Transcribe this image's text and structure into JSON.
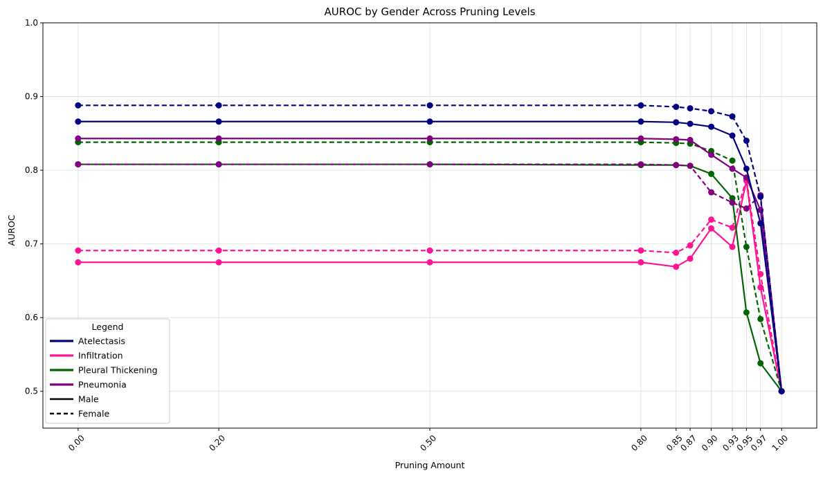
{
  "chart_data": {
    "type": "line",
    "title": "AUROC by Gender Across Pruning Levels",
    "xlabel": "Pruning Amount",
    "ylabel": "AUROC",
    "xlim": [
      -0.05,
      1.05
    ],
    "ylim": [
      0.45,
      1.0
    ],
    "x": [
      0.0,
      0.2,
      0.5,
      0.8,
      0.85,
      0.87,
      0.9,
      0.93,
      0.95,
      0.97,
      1.0
    ],
    "x_tick_labels": [
      "0.00",
      "0.20",
      "0.50",
      "0.80",
      "0.85",
      "0.87",
      "0.90",
      "0.93",
      "0.95",
      "0.97",
      "1.00"
    ],
    "y_ticks": [
      0.5,
      0.6,
      0.7,
      0.8,
      0.9,
      1.0
    ],
    "y_tick_labels": [
      "0.5",
      "0.6",
      "0.7",
      "0.8",
      "0.9",
      "1.0"
    ],
    "grid": true,
    "legend": {
      "title": "Legend",
      "position": "lower-left",
      "entries": [
        {
          "label": "Atelectasis",
          "color": "#000080",
          "style": "solid"
        },
        {
          "label": "Infiltration",
          "color": "#ff1493",
          "style": "solid"
        },
        {
          "label": "Pleural Thickening",
          "color": "#006400",
          "style": "solid"
        },
        {
          "label": "Pneumonia",
          "color": "#800080",
          "style": "solid"
        },
        {
          "label": "Male",
          "color": "#000000",
          "style": "solid"
        },
        {
          "label": "Female",
          "color": "#000000",
          "style": "dashed"
        }
      ]
    },
    "series": [
      {
        "disease": "Infiltration",
        "gender": "Female",
        "color": "#ff1493",
        "style": "dashed",
        "values": [
          0.691,
          0.691,
          0.691,
          0.691,
          0.688,
          0.698,
          0.733,
          0.722,
          0.788,
          0.659,
          0.5
        ]
      },
      {
        "disease": "Infiltration",
        "gender": "Male",
        "color": "#ff1493",
        "style": "solid",
        "values": [
          0.675,
          0.675,
          0.675,
          0.675,
          0.669,
          0.68,
          0.721,
          0.696,
          0.786,
          0.641,
          0.5
        ]
      },
      {
        "disease": "Pleural Thickening",
        "gender": "Female",
        "color": "#006400",
        "style": "dashed",
        "values": [
          0.838,
          0.838,
          0.838,
          0.838,
          0.837,
          0.836,
          0.826,
          0.813,
          0.696,
          0.598,
          0.5
        ]
      },
      {
        "disease": "Pleural Thickening",
        "gender": "Male",
        "color": "#006400",
        "style": "solid",
        "values": [
          0.808,
          0.808,
          0.808,
          0.807,
          0.807,
          0.806,
          0.795,
          0.762,
          0.607,
          0.538,
          0.5
        ]
      },
      {
        "disease": "Pneumonia",
        "gender": "Female",
        "color": "#800080",
        "style": "dashed",
        "values": [
          0.808,
          0.808,
          0.808,
          0.808,
          0.807,
          0.806,
          0.77,
          0.756,
          0.748,
          0.766,
          0.5
        ]
      },
      {
        "disease": "Pneumonia",
        "gender": "Male",
        "color": "#800080",
        "style": "solid",
        "values": [
          0.843,
          0.843,
          0.843,
          0.843,
          0.842,
          0.841,
          0.821,
          0.802,
          0.79,
          0.746,
          0.5
        ]
      },
      {
        "disease": "Atelectasis",
        "gender": "Female",
        "color": "#000080",
        "style": "dashed",
        "values": [
          0.888,
          0.888,
          0.888,
          0.888,
          0.886,
          0.884,
          0.88,
          0.873,
          0.84,
          0.764,
          0.5
        ]
      },
      {
        "disease": "Atelectasis",
        "gender": "Male",
        "color": "#000080",
        "style": "solid",
        "values": [
          0.866,
          0.866,
          0.866,
          0.866,
          0.865,
          0.863,
          0.859,
          0.847,
          0.802,
          0.728,
          0.5
        ]
      }
    ]
  }
}
